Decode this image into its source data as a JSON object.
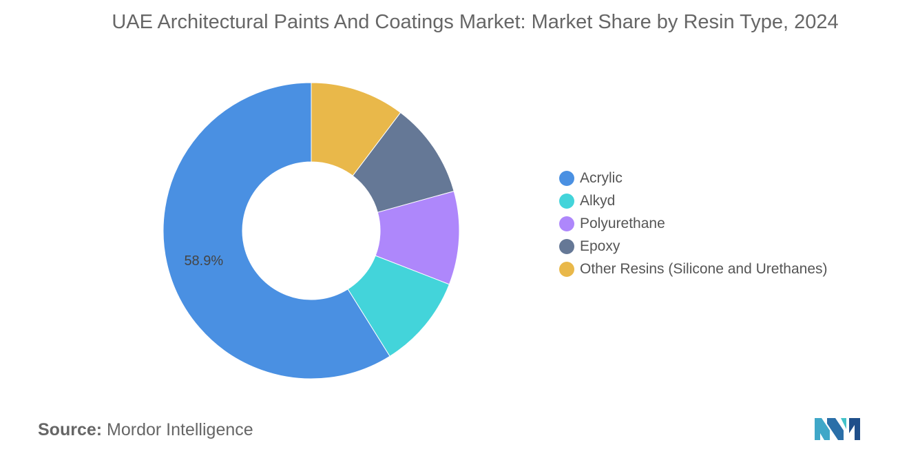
{
  "title": "UAE Architectural Paints And Coatings Market: Market Share by Resin Type, 2024",
  "source": {
    "label": "Source:",
    "text": "Mordor Intelligence"
  },
  "chart_data": {
    "type": "pie",
    "title": "UAE Architectural Paints And Coatings Market: Market Share by Resin Type, 2024",
    "legend_position": "right",
    "slices": [
      {
        "name": "Other Resins (Silicone and Urethanes)",
        "value": 10.3,
        "color": "#E9B84A"
      },
      {
        "name": "Epoxy",
        "value": 10.4,
        "color": "#657896"
      },
      {
        "name": "Polyurethane",
        "value": 10.2,
        "color": "#AE87FB"
      },
      {
        "name": "Alkyd",
        "value": 10.2,
        "color": "#43D4DA"
      },
      {
        "name": "Acrylic",
        "value": 58.9,
        "color": "#4A90E2"
      }
    ],
    "legend": [
      {
        "name": "Acrylic",
        "color": "#4A90E2"
      },
      {
        "name": "Alkyd",
        "color": "#43D4DA"
      },
      {
        "name": "Polyurethane",
        "color": "#AE87FB"
      },
      {
        "name": "Epoxy",
        "color": "#657896"
      },
      {
        "name": "Other Resins (Silicone and Urethanes)",
        "color": "#E9B84A"
      }
    ],
    "data_labels": [
      {
        "series": "Acrylic",
        "text": "58.9%"
      }
    ]
  }
}
